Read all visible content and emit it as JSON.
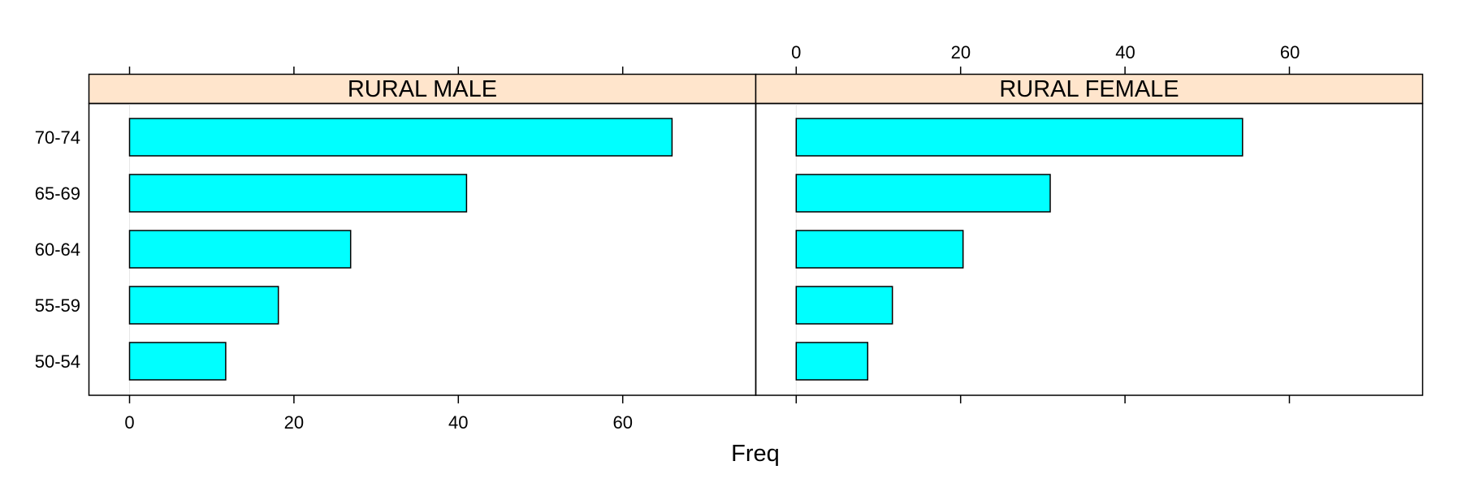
{
  "chart_data": {
    "type": "bar",
    "orientation": "horizontal",
    "title": "",
    "xlabel": "Freq",
    "ylabel": "",
    "xlim": [
      -5,
      76
    ],
    "x_ticks": [
      0,
      20,
      40,
      60
    ],
    "grid": false,
    "legend": null,
    "categories": [
      "50-54",
      "55-59",
      "60-64",
      "65-69",
      "70-74"
    ],
    "panels": [
      {
        "name": "RURAL MALE",
        "values": [
          11.7,
          18.1,
          26.9,
          41.0,
          66.0
        ]
      },
      {
        "name": "RURAL FEMALE",
        "values": [
          8.7,
          11.7,
          20.3,
          30.9,
          54.3
        ]
      }
    ],
    "colors": {
      "bar_fill": "#00FFFF",
      "bar_stroke": "#000000",
      "strip_fill": "#FFE5CC",
      "zero_ref_line": "#E6E6E6"
    }
  },
  "labels": {
    "x_axis_title": "Freq",
    "panel_titles": [
      "RURAL MALE",
      "RURAL FEMALE"
    ],
    "tick_labels": [
      "0",
      "20",
      "40",
      "60"
    ],
    "category_labels": [
      "70-74",
      "65-69",
      "60-64",
      "55-59",
      "50-54"
    ]
  }
}
